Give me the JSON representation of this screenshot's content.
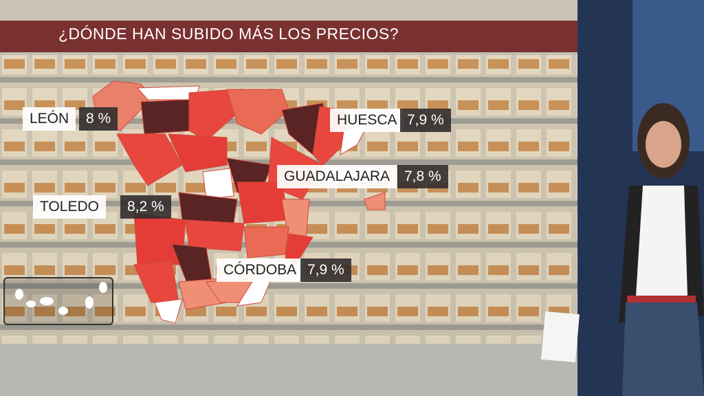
{
  "header": {
    "title": "¿DÓNDE HAN SUBIDO MÁS LOS PRECIOS?"
  },
  "labels": [
    {
      "name": "LEÓN",
      "value": "8 %"
    },
    {
      "name": "HUESCA",
      "value": "7,9 %"
    },
    {
      "name": "GUADALAJARA",
      "value": "7,8 %"
    },
    {
      "name": "TOLEDO",
      "value": "8,2 %"
    },
    {
      "name": "CÓRDOBA",
      "value": "7,9 %"
    }
  ]
}
